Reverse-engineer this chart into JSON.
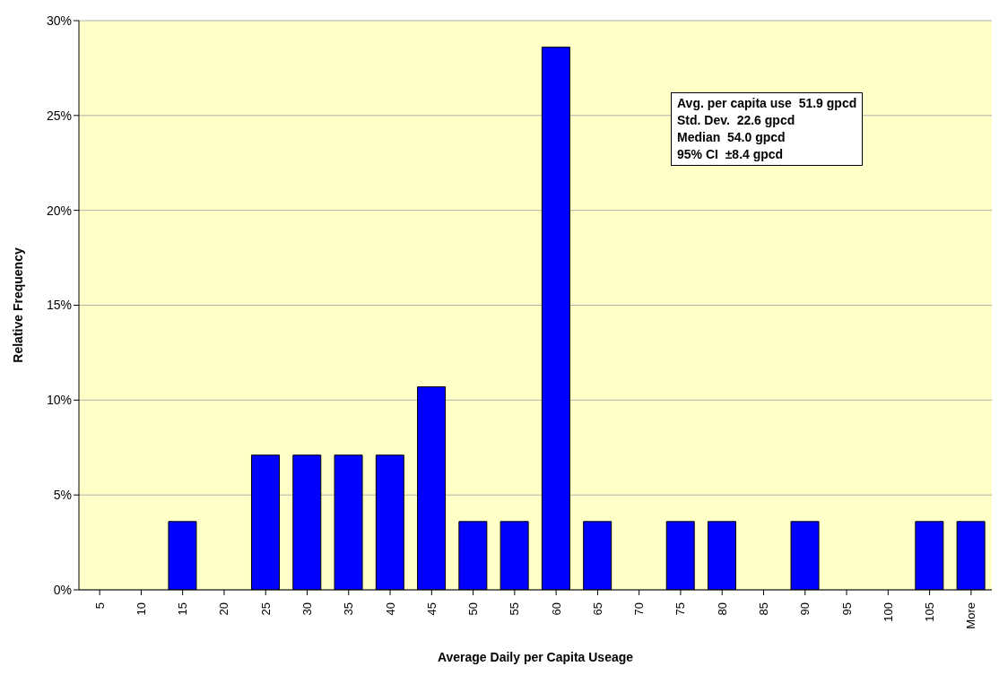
{
  "chart_data": {
    "type": "bar",
    "xlabel": "Average Daily per Capita Useage",
    "ylabel": "Relative Frequency",
    "categories": [
      "5",
      "10",
      "15",
      "20",
      "25",
      "30",
      "35",
      "40",
      "45",
      "50",
      "55",
      "60",
      "65",
      "70",
      "75",
      "80",
      "85",
      "90",
      "95",
      "100",
      "105",
      "More"
    ],
    "values": [
      0,
      0,
      3.6,
      0,
      7.1,
      7.1,
      7.1,
      7.1,
      10.7,
      3.6,
      3.6,
      28.6,
      3.6,
      0,
      3.6,
      3.6,
      0,
      3.6,
      0,
      0,
      3.6,
      3.6
    ],
    "color": "#0000ff",
    "ylim": [
      0,
      30
    ],
    "yticks": [
      {
        "value": 0,
        "label": "0%"
      },
      {
        "value": 5,
        "label": "5%"
      },
      {
        "value": 10,
        "label": "10%"
      },
      {
        "value": 15,
        "label": "15%"
      },
      {
        "value": 20,
        "label": "20%"
      },
      {
        "value": 25,
        "label": "25%"
      },
      {
        "value": 30,
        "label": "30%"
      }
    ],
    "grid": "y",
    "annotations": [
      "Avg. per capita use  51.9 gpcd",
      "Std. Dev.  22.6 gpcd",
      "Median  54.0 gpcd",
      "95% CI  ±8.4 gpcd"
    ]
  }
}
